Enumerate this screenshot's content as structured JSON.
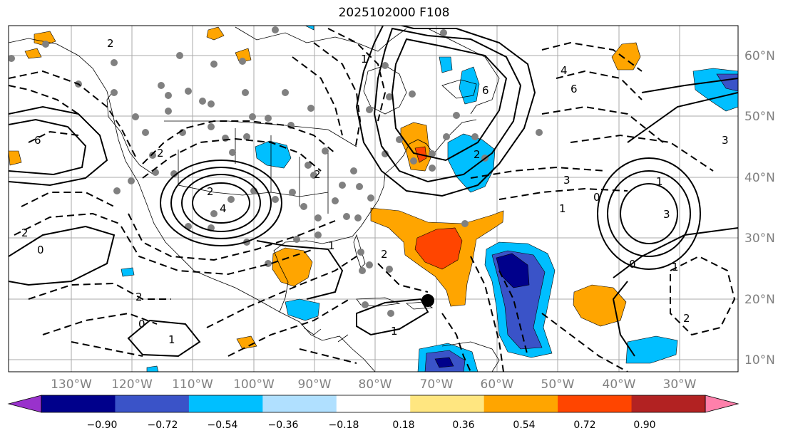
{
  "title": "2025102000 F108",
  "lon_labels": [
    "130°W",
    "120°W",
    "110°W",
    "100°W",
    "90°W",
    "80°W",
    "70°W",
    "60°W",
    "50°W",
    "40°W",
    "30°W"
  ],
  "lat_labels": [
    "60°N",
    "50°N",
    "40°N",
    "30°N",
    "20°N",
    "10°N"
  ],
  "colorbar": {
    "ticks": [
      "−0.90",
      "−0.72",
      "−0.54",
      "−0.36",
      "−0.18",
      "0.18",
      "0.36",
      "0.54",
      "0.72",
      "0.90"
    ],
    "colors": [
      "#9932cc",
      "#00008b",
      "#3a53c8",
      "#00bfff",
      "#b0e0ff",
      "#ffffff",
      "#ffe680",
      "#ffa500",
      "#ff4500",
      "#b22222",
      "#ff80ab"
    ]
  },
  "contour_labels": [
    "6",
    "4",
    "2",
    "2",
    "0",
    "1",
    "2",
    "4",
    "6",
    "6",
    "3",
    "1",
    "0",
    "1",
    "3",
    "2",
    "0",
    "1",
    "2",
    "3",
    "2",
    "1",
    "2",
    "2",
    "1",
    "0",
    "2",
    "1"
  ],
  "colors": {
    "grid": "#aaaaaa",
    "station": "#808080",
    "orange": "#ffa500",
    "red": "#ff4500",
    "lightblue": "#00bfff",
    "blue": "#3a53c8",
    "navy": "#00008b"
  }
}
